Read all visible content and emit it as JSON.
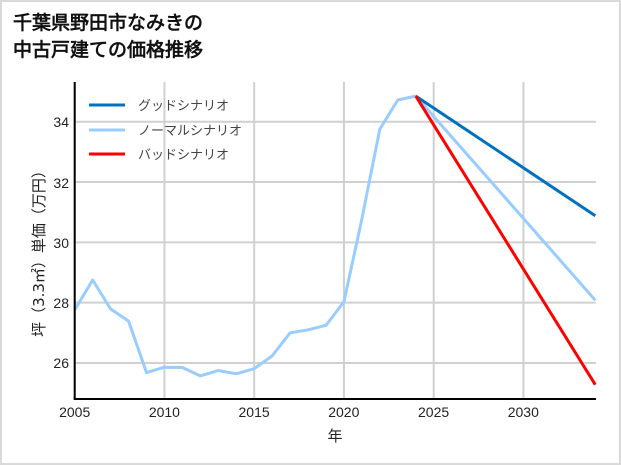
{
  "chart_data": {
    "type": "line",
    "title": "千葉県野田市なみきの\n中古戸建ての価格推移",
    "title_lines": [
      "千葉県野田市なみきの",
      "中古戸建ての価格推移"
    ],
    "xlabel": "年",
    "ylabel": "坪（3.3㎡）単価（万円）",
    "xlim": [
      2005,
      2034
    ],
    "ylim": [
      24.8,
      35.3
    ],
    "xticks": [
      2005,
      2010,
      2015,
      2020,
      2025,
      2030
    ],
    "yticks": [
      26,
      28,
      30,
      32,
      34
    ],
    "grid": true,
    "legend_position": "upper left",
    "series": [
      {
        "name": "グッドシナリオ",
        "color": "#0070c0",
        "x": [
          2024,
          2034
        ],
        "values": [
          34.85,
          30.88
        ]
      },
      {
        "name": "ノーマルシナリオ",
        "color": "#99ccff",
        "x": [
          2005,
          2006,
          2007,
          2008,
          2009,
          2010,
          2011,
          2012,
          2013,
          2014,
          2015,
          2016,
          2017,
          2018,
          2019,
          2020,
          2021,
          2022,
          2023,
          2024,
          2034
        ],
        "values": [
          27.76,
          28.75,
          27.79,
          27.39,
          25.68,
          25.86,
          25.85,
          25.57,
          25.75,
          25.64,
          25.81,
          26.23,
          27.0,
          27.1,
          27.25,
          28.03,
          30.78,
          33.75,
          34.72,
          34.85,
          28.08
        ]
      },
      {
        "name": "バッドシナリオ",
        "color": "#ff0000",
        "x": [
          2024,
          2034
        ],
        "values": [
          34.85,
          25.28
        ]
      }
    ]
  },
  "header": {
    "title_line1": "千葉県野田市なみきの",
    "title_line2": "中古戸建ての価格推移"
  },
  "axes": {
    "xlabel": "年",
    "ylabel": "坪（3.3㎡）単価（万円）",
    "xtick_labels": [
      "2005",
      "2010",
      "2015",
      "2020",
      "2025",
      "2030"
    ],
    "ytick_labels": [
      "26",
      "28",
      "30",
      "32",
      "34"
    ]
  },
  "legend": {
    "items": [
      {
        "label": "グッドシナリオ",
        "color": "#0070c0"
      },
      {
        "label": "ノーマルシナリオ",
        "color": "#99ccff"
      },
      {
        "label": "バッドシナリオ",
        "color": "#ff0000"
      }
    ]
  },
  "colors": {
    "grid": "#d0d0d0",
    "axis": "#000000",
    "frame_border": "#d9d9d9"
  }
}
